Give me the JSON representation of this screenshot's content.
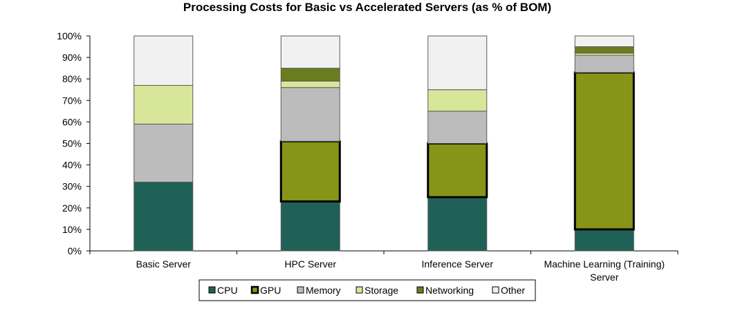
{
  "chart_data": {
    "type": "bar",
    "stacked": true,
    "title": "Processing Costs for Basic vs Accelerated Servers (as % of BOM)",
    "xlabel": "",
    "ylabel": "",
    "ylim": [
      0,
      100
    ],
    "y_ticks": [
      "0%",
      "10%",
      "20%",
      "30%",
      "40%",
      "50%",
      "60%",
      "70%",
      "80%",
      "90%",
      "100%"
    ],
    "categories": [
      "Basic Server",
      "HPC Server",
      "Inference Server",
      "Machine Learning (Training) Server"
    ],
    "category_lines": [
      [
        "Basic Server"
      ],
      [
        "HPC Server"
      ],
      [
        "Inference Server"
      ],
      [
        "Machine Learning (Training)",
        "Server"
      ]
    ],
    "series": [
      {
        "name": "CPU",
        "color": "#1f6157",
        "values": [
          32,
          23,
          25,
          10
        ]
      },
      {
        "name": "GPU",
        "color": "#879417",
        "values": [
          0,
          28,
          25,
          73
        ]
      },
      {
        "name": "Memory",
        "color": "#bcbcbc",
        "values": [
          27,
          25,
          15,
          8
        ]
      },
      {
        "name": "Storage",
        "color": "#d8e69a",
        "values": [
          18,
          3,
          10,
          1
        ]
      },
      {
        "name": "Networking",
        "color": "#6a7d1e",
        "values": [
          0,
          6,
          0,
          3
        ]
      },
      {
        "name": "Other",
        "color": "#f1f1f1",
        "values": [
          23,
          15,
          25,
          5
        ]
      }
    ],
    "legend_position": "bottom",
    "grid": false
  }
}
